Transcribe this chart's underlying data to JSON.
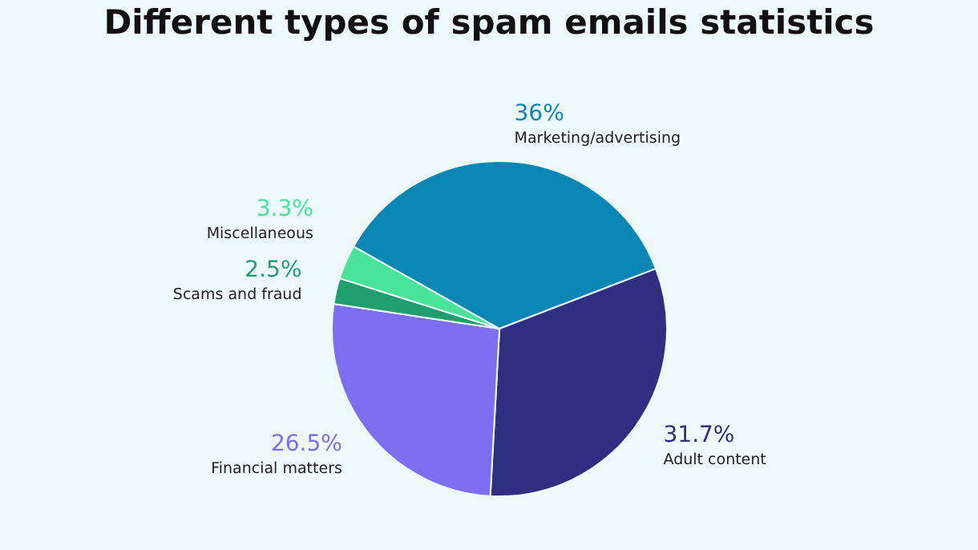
{
  "chart_data": {
    "type": "pie",
    "title": "Different types of spam emails statistics",
    "categories": [
      "Marketing/advertising",
      "Adult content",
      "Financial matters",
      "Scams and fraud",
      "Miscellaneous"
    ],
    "values": [
      36,
      31.7,
      26.5,
      2.5,
      3.3
    ],
    "colors": [
      "#0a86b5",
      "#2e2f80",
      "#7b6ff0",
      "#1f9e6e",
      "#4ae39a"
    ],
    "value_labels": [
      "36%",
      "31.7%",
      "26.5%",
      "2.5%",
      "3.3%"
    ],
    "legend": false
  }
}
